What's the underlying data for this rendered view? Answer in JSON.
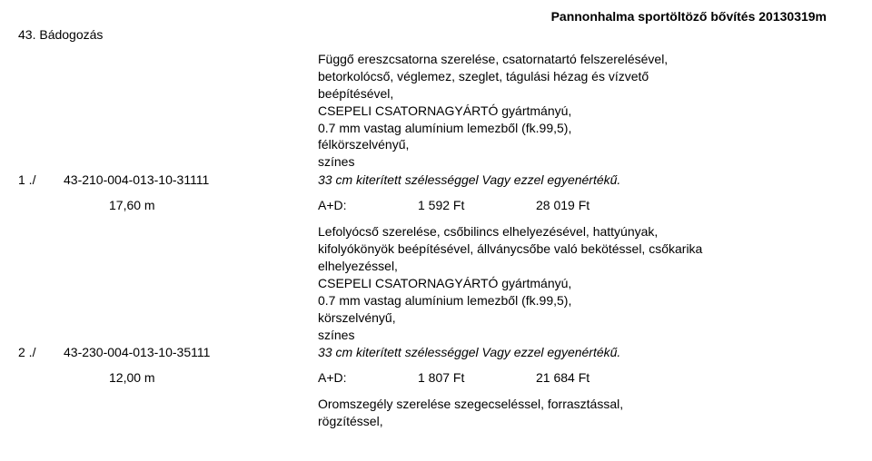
{
  "header_title": "Pannonhalma sportöltöző bővítés 20130319m",
  "section_title": "43. Bádogozás",
  "items": [
    {
      "num": "1 ./",
      "code": "43-210-004-013-10-31111",
      "desc_lines": [
        "Függő ereszcsatorna szerelése, csatornatartó felszerelésével,",
        "betorkolócső, véglemez, szeglet, tágulási hézag és vízvető",
        "beépítésével,",
        "CSEPELI CSATORNAGYÁRTÓ gyártmányú,",
        "0.7 mm vastag alumínium lemezből (fk.99,5),",
        "félkörszelvényű,",
        "színes"
      ],
      "italic_line": "33 cm kiterített szélességgel Vagy ezzel egyenértékű.",
      "qty": "17,60 m",
      "ad_label": "A+D:",
      "unit_price": "1 592 Ft",
      "total_price": "28 019 Ft"
    },
    {
      "num": "2 ./",
      "code": "43-230-004-013-10-35111",
      "desc_lines": [
        "Lefolyócső szerelése, csőbilincs elhelyezésével, hattyúnyak,",
        "kifolyókönyök beépítésével, állványcsőbe való bekötéssel, csőkarika",
        "elhelyezéssel,",
        "CSEPELI CSATORNAGYÁRTÓ gyártmányú,",
        "0.7 mm vastag alumínium lemezből (fk.99,5),",
        "körszelvényű,",
        "színes"
      ],
      "italic_line": "33 cm kiterített szélességgel Vagy ezzel egyenértékű.",
      "qty": "12,00 m",
      "ad_label": "A+D:",
      "unit_price": "1 807 Ft",
      "total_price": "21 684 Ft"
    }
  ],
  "trailing_lines": [
    "Oromszegély szerelése szegecseléssel, forrasztással,",
    "rögzítéssel,"
  ]
}
